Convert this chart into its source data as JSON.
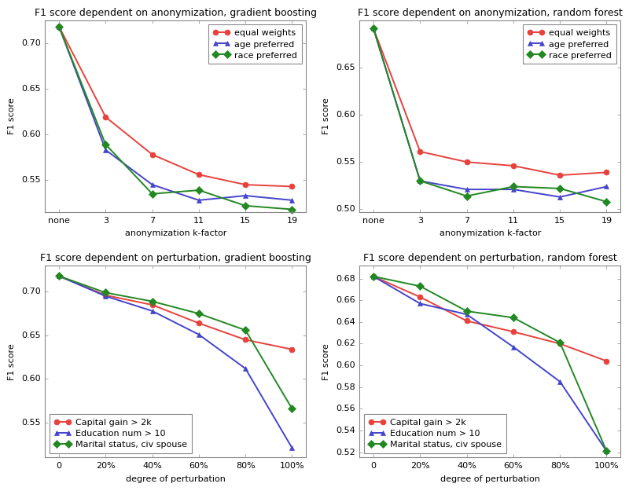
{
  "top_left": {
    "title": "F1 score dependent on anonymization, gradient boosting",
    "xlabel": "anonymization k-factor",
    "ylabel": "F1 score",
    "xticks": [
      0,
      1,
      2,
      3,
      4,
      5
    ],
    "xticklabels": [
      "none",
      "3",
      "7",
      "11",
      "15",
      "19"
    ],
    "ylim": [
      0.515,
      0.725
    ],
    "yticks": [
      0.55,
      0.6,
      0.65,
      0.7
    ],
    "series": [
      {
        "label": "equal weights",
        "color": "#e8413c",
        "marker": "o",
        "y": [
          0.718,
          0.619,
          0.578,
          0.556,
          0.545,
          0.543
        ]
      },
      {
        "label": "age preferred",
        "color": "#4444cc",
        "marker": "^",
        "y": [
          0.718,
          0.583,
          0.545,
          0.528,
          0.533,
          0.528
        ]
      },
      {
        "label": "race preferred",
        "color": "#228822",
        "marker": "D",
        "y": [
          0.718,
          0.589,
          0.535,
          0.539,
          0.522,
          0.518
        ]
      }
    ],
    "legend_loc": "upper right"
  },
  "top_right": {
    "title": "F1 score dependent on anonymization, random forest",
    "xlabel": "anonymization k-factor",
    "ylabel": "F1 score",
    "xticks": [
      0,
      1,
      2,
      3,
      4,
      5
    ],
    "xticklabels": [
      "none",
      "3",
      "7",
      "11",
      "15",
      "19"
    ],
    "ylim": [
      0.497,
      0.7
    ],
    "yticks": [
      0.5,
      0.55,
      0.6,
      0.65
    ],
    "series": [
      {
        "label": "equal weights",
        "color": "#e8413c",
        "marker": "o",
        "y": [
          0.691,
          0.561,
          0.55,
          0.546,
          0.536,
          0.539
        ]
      },
      {
        "label": "age preferred",
        "color": "#4444cc",
        "marker": "^",
        "y": [
          0.691,
          0.53,
          0.521,
          0.521,
          0.513,
          0.524
        ]
      },
      {
        "label": "race preferred",
        "color": "#228822",
        "marker": "D",
        "y": [
          0.691,
          0.53,
          0.514,
          0.524,
          0.522,
          0.508
        ]
      }
    ],
    "legend_loc": "upper right"
  },
  "bottom_left": {
    "title": "F1 score dependent on perturbation, gradient boosting",
    "xlabel": "degree of perturbation",
    "ylabel": "F1 score",
    "xticks": [
      0,
      1,
      2,
      3,
      4,
      5
    ],
    "xticklabels": [
      "0",
      "20%",
      "40%",
      "60%",
      "80%",
      "100%"
    ],
    "ylim": [
      0.51,
      0.73
    ],
    "yticks": [
      0.55,
      0.6,
      0.65,
      0.7
    ],
    "series": [
      {
        "label": "Capital gain > 2k",
        "color": "#e8413c",
        "marker": "o",
        "y": [
          0.718,
          0.696,
          0.685,
          0.664,
          0.645,
          0.634
        ]
      },
      {
        "label": "Education num > 10",
        "color": "#4444cc",
        "marker": "^",
        "y": [
          0.718,
          0.695,
          0.678,
          0.651,
          0.612,
          0.521
        ]
      },
      {
        "label": "Marital status, civ spouse",
        "color": "#228822",
        "marker": "D",
        "y": [
          0.718,
          0.699,
          0.689,
          0.675,
          0.656,
          0.566
        ]
      }
    ],
    "legend_loc": "lower left"
  },
  "bottom_right": {
    "title": "F1 score dependent on perturbation, random forest",
    "xlabel": "degree of perturbation",
    "ylabel": "F1 score",
    "xticks": [
      0,
      1,
      2,
      3,
      4,
      5
    ],
    "xticklabels": [
      "0",
      "20%",
      "40%",
      "60%",
      "80%",
      "100%"
    ],
    "ylim": [
      0.515,
      0.692
    ],
    "yticks": [
      0.52,
      0.54,
      0.56,
      0.58,
      0.6,
      0.62,
      0.64,
      0.66,
      0.68
    ],
    "series": [
      {
        "label": "Capital gain > 2k",
        "color": "#e8413c",
        "marker": "o",
        "y": [
          0.682,
          0.663,
          0.641,
          0.631,
          0.62,
          0.604
        ]
      },
      {
        "label": "Education num > 10",
        "color": "#4444cc",
        "marker": "^",
        "y": [
          0.682,
          0.657,
          0.647,
          0.617,
          0.585,
          0.521
        ]
      },
      {
        "label": "Marital status, civ spouse",
        "color": "#228822",
        "marker": "D",
        "y": [
          0.682,
          0.673,
          0.65,
          0.644,
          0.621,
          0.521
        ]
      }
    ],
    "legend_loc": "lower left"
  },
  "figure_background": "#c8c8c8",
  "axes_background": "#ffffff",
  "spine_color": "#888888",
  "tick_color": "#444444",
  "title_fontsize": 9,
  "label_fontsize": 8,
  "tick_fontsize": 8,
  "legend_fontsize": 8,
  "line_width": 1.4,
  "marker_size": 5
}
